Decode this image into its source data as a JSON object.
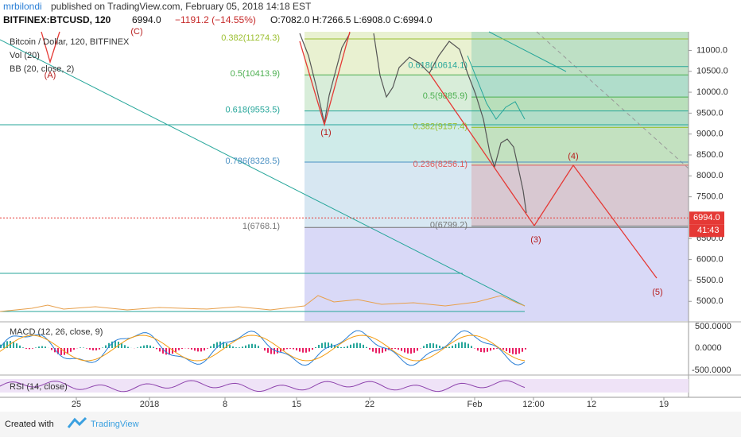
{
  "header": {
    "author": "mrbilondi",
    "published": "published on TradingView.com, February 05, 2018 14:18 EST"
  },
  "symbol": {
    "name": "BITFINEX:BTCUSD, 120",
    "last": "6994.0",
    "change": "−1191.2 (−14.55%)",
    "ohlc": "O:7082.0 H:7266.5 L:6908.0 C:6994.0"
  },
  "legend": [
    "Bitcoin / Dollar, 120, BITFINEX",
    "Vol (20)",
    "BB (20, close, 2)"
  ],
  "chart_data": {
    "type": "fibonacci",
    "ylim": [
      4530,
      11445
    ],
    "yticks": [
      {
        "value": 11000,
        "label": "11000.0"
      },
      {
        "value": 10500,
        "label": "10500.0"
      },
      {
        "value": 10000,
        "label": "10000.0"
      },
      {
        "value": 9500,
        "label": "9500.0"
      },
      {
        "value": 9000,
        "label": "9000.0"
      },
      {
        "value": 8500,
        "label": "8500.0"
      },
      {
        "value": 8000,
        "label": "8000.0"
      },
      {
        "value": 7500,
        "label": "7500.0"
      },
      {
        "value": 6500,
        "label": "6500.0"
      },
      {
        "value": 6000,
        "label": "6000.0"
      },
      {
        "value": 5500,
        "label": "5500.0"
      },
      {
        "value": 5000,
        "label": "5000.0"
      }
    ],
    "fib_left": [
      {
        "price": 11274.3,
        "label": "0.382(11274.3)",
        "color": "#9bbf2e"
      },
      {
        "price": 10413.9,
        "label": "0.5(10413.9)",
        "color": "#4caf50"
      },
      {
        "price": 9553.5,
        "label": "0.618(9553.5)",
        "color": "#26a69a"
      },
      {
        "price": 8328.5,
        "label": "0.786(8328.5)",
        "color": "#4a90c2"
      },
      {
        "price": 6768.1,
        "label": "1(6768.1)",
        "color": "#777777"
      }
    ],
    "fib_right": [
      {
        "price": 10614.1,
        "label": "0.618(10614.1)",
        "color": "#26a69a"
      },
      {
        "price": 9885.9,
        "label": "0.5(9885.9)",
        "color": "#4caf50"
      },
      {
        "price": 9157.4,
        "label": "0.382(9157.4)",
        "color": "#9bbf2e"
      },
      {
        "price": 8256.1,
        "label": "0.236(8256.1)",
        "color": "#e05a5a"
      },
      {
        "price": 6799.2,
        "label": "0(6799.2)",
        "color": "#777777"
      }
    ],
    "price_tag": {
      "value": 6994.0,
      "label": "6994.0"
    },
    "countdown": "41:43",
    "waves": [
      "(A)",
      "(C)",
      "(1)",
      "(3)",
      "(4)",
      "(5)"
    ],
    "xticks": [
      "25",
      "2018",
      "8",
      "15",
      "22",
      "Feb",
      "12:00",
      "12",
      "19"
    ],
    "macd": {
      "label": "MACD (12, 26, close, 9)",
      "ticks": [
        "500.0000",
        "0.0000",
        "-500.0000"
      ]
    },
    "rsi": {
      "label": "RSI (14, close)"
    }
  },
  "footer": {
    "created": "Created with",
    "brand": "TradingView"
  }
}
